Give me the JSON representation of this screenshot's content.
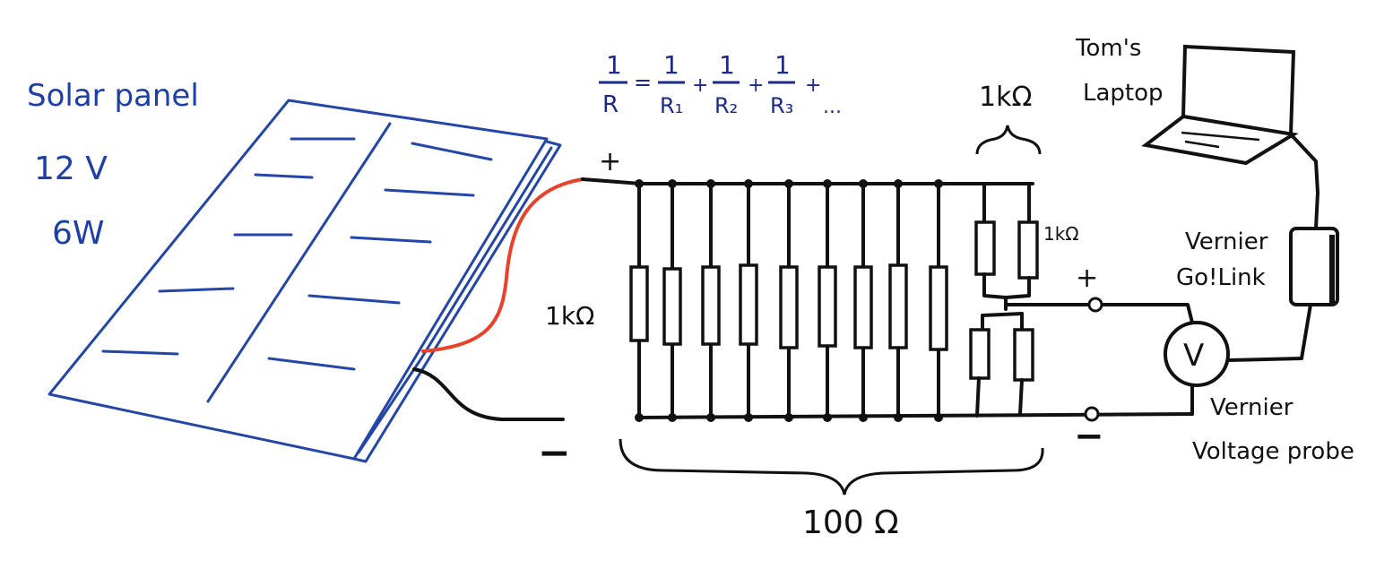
{
  "solar_panel": {
    "label": "Solar panel",
    "voltage": "12 V",
    "power": "6W"
  },
  "formula": {
    "lhs_num": "1",
    "lhs_den": "R",
    "eq": "=",
    "terms": [
      {
        "num": "1",
        "den": "R₁"
      },
      {
        "num": "1",
        "den": "R₂"
      },
      {
        "num": "1",
        "den": "R₃"
      }
    ],
    "plus": "+",
    "ellipsis": "..."
  },
  "circuit": {
    "plus_left": "+",
    "minus_left": "−",
    "resistor_label": "1kΩ",
    "top_group_label": "1kΩ",
    "small_res_label": "1kΩ",
    "plus_right": "+",
    "minus_right": "−",
    "total_label": "100 Ω"
  },
  "laptop": {
    "label_line1": "Tom's",
    "label_line2": "Laptop"
  },
  "golink": {
    "label_line1": "Vernier",
    "label_line2": "Go!Link"
  },
  "voltmeter": {
    "symbol": "V",
    "label_line1": "Vernier",
    "label_line2": "Voltage probe"
  },
  "colors": {
    "panel_blue": "#2346a8",
    "formula_navy": "#1d2a8a",
    "positive_wire_red": "#e8432a",
    "ink": "#111111"
  }
}
